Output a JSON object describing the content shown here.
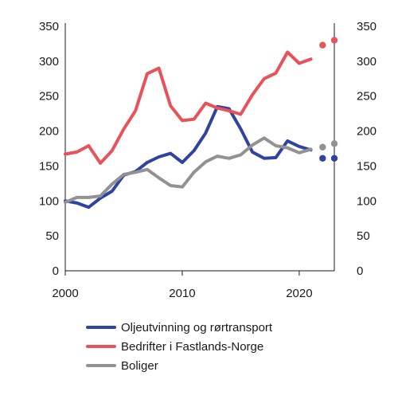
{
  "chart_data": {
    "type": "line",
    "title": "",
    "xlabel": "",
    "ylabel": "",
    "ylim": [
      0,
      350
    ],
    "y_ticks": [
      0,
      50,
      100,
      150,
      200,
      250,
      300,
      350
    ],
    "x_ticks": [
      2000,
      2010,
      2020
    ],
    "xlim": [
      2000,
      2023
    ],
    "grid": false,
    "dual_y_axis_labels": true,
    "legend_position": "bottom",
    "series": [
      {
        "name": "Oljeutvinning og rørtransport",
        "color": "#2e44a0",
        "x": [
          2000,
          2001,
          2002,
          2003,
          2004,
          2005,
          2006,
          2007,
          2008,
          2009,
          2010,
          2011,
          2012,
          2013,
          2014,
          2015,
          2016,
          2017,
          2018,
          2019,
          2020,
          2021
        ],
        "values": [
          100,
          97,
          91,
          104,
          114,
          137,
          142,
          155,
          163,
          168,
          155,
          172,
          197,
          235,
          232,
          203,
          170,
          161,
          162,
          186,
          178,
          173
        ],
        "projection": {
          "x": [
            2022,
            2023
          ],
          "values": [
            161,
            161
          ]
        }
      },
      {
        "name": "Bedrifter i Fastlands-Norge",
        "color": "#e8525a",
        "x": [
          2000,
          2001,
          2002,
          2003,
          2004,
          2005,
          2006,
          2007,
          2008,
          2009,
          2010,
          2011,
          2012,
          2013,
          2014,
          2015,
          2016,
          2017,
          2018,
          2019,
          2020,
          2021
        ],
        "values": [
          167,
          170,
          179,
          154,
          172,
          203,
          229,
          282,
          290,
          236,
          215,
          217,
          240,
          233,
          229,
          224,
          252,
          275,
          283,
          313,
          297,
          303
        ],
        "projection": {
          "x": [
            2022,
            2023
          ],
          "values": [
            323,
            330
          ]
        }
      },
      {
        "name": "Boliger",
        "color": "#929292",
        "x": [
          2000,
          2001,
          2002,
          2003,
          2004,
          2005,
          2006,
          2007,
          2008,
          2009,
          2010,
          2011,
          2012,
          2013,
          2014,
          2015,
          2016,
          2017,
          2018,
          2019,
          2020,
          2021
        ],
        "values": [
          98,
          105,
          105,
          107,
          124,
          138,
          141,
          145,
          133,
          122,
          120,
          141,
          156,
          164,
          161,
          166,
          180,
          190,
          179,
          176,
          169,
          174
        ],
        "projection": {
          "x": [
            2022,
            2023
          ],
          "values": [
            177,
            182
          ]
        }
      }
    ]
  }
}
